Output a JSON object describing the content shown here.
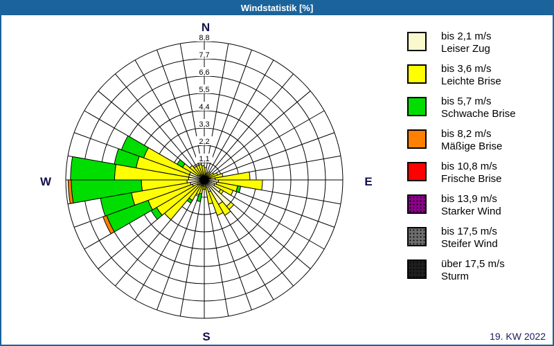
{
  "titlebar": {
    "text": "Windstatistik [%]",
    "bg_color": "#1b639b",
    "text_color": "#ffffff"
  },
  "footer": {
    "text": "19. KW 2022",
    "text_color": "#1a1a5f"
  },
  "compass": {
    "north": "N",
    "east": "E",
    "south": "S",
    "west": "W",
    "label_color": "#10104f"
  },
  "ring_labels": [
    "1,1",
    "2,2",
    "3,3",
    "4,4",
    "5,5",
    "6,6",
    "7,7",
    "8,8"
  ],
  "chart_data": {
    "type": "windrose",
    "title": "Windstatistik [%]",
    "units": "percent",
    "ring_step": 1.1,
    "ring_count": 8,
    "radial_max": 8.8,
    "sector_width_deg": 10,
    "grid": "polar, 36 spokes every 10 degrees, 8 concentric rings",
    "classes": [
      {
        "label": "bis 2,1 m/s",
        "name": "Leiser Zug",
        "color": "#fbf8cd",
        "dotted": false
      },
      {
        "label": "bis 3,6 m/s",
        "name": "Leichte Brise",
        "color": "#ffff00",
        "dotted": false
      },
      {
        "label": "bis 5,7 m/s",
        "name": "Schwache Brise",
        "color": "#00de00",
        "dotted": false
      },
      {
        "label": "bis 8,2 m/s",
        "name": "Mäßige Brise",
        "color": "#ff8000",
        "dotted": false
      },
      {
        "label": "bis 10,8 m/s",
        "name": "Frische Brise",
        "color": "#ff0000",
        "dotted": false
      },
      {
        "label": "bis 13,9 m/s",
        "name": "Starker Wind",
        "color": "#8b008b",
        "dotted": true
      },
      {
        "label": "bis 17,5 m/s",
        "name": "Steifer Wind",
        "color": "#6c6c6c",
        "dotted": true
      },
      {
        "label": "über 17,5 m/s",
        "name": "Sturm",
        "color": "#1f1f1f",
        "dotted": true
      }
    ],
    "sectors_note": "start = compass start angle of 10° sector; cum = cumulative % per speed class (bis 2,1 / bis 3,6 / bis 5,7 / bis 8,2 m/s)",
    "sectors": [
      {
        "start": 0,
        "cum": [
          0.2,
          0.8
        ]
      },
      {
        "start": 10,
        "cum": [
          0.1,
          0.4
        ]
      },
      {
        "start": 20,
        "cum": [
          0.2,
          0.5
        ]
      },
      {
        "start": 30,
        "cum": [
          0.2,
          0.6
        ]
      },
      {
        "start": 40,
        "cum": [
          0.2,
          0.5
        ]
      },
      {
        "start": 50,
        "cum": [
          0.3,
          0.7
        ]
      },
      {
        "start": 60,
        "cum": [
          0.3,
          0.9
        ]
      },
      {
        "start": 70,
        "cum": [
          0.4,
          1.2
        ]
      },
      {
        "start": 80,
        "cum": [
          0.7,
          2.9
        ]
      },
      {
        "start": 90,
        "cum": [
          0.9,
          3.7
        ]
      },
      {
        "start": 100,
        "cum": [
          0.8,
          2.15,
          2.35
        ]
      },
      {
        "start": 110,
        "cum": [
          0.7,
          1.95
        ]
      },
      {
        "start": 120,
        "cum": [
          1.2,
          1.4
        ]
      },
      {
        "start": 130,
        "cum": [
          2.2,
          2.45
        ]
      },
      {
        "start": 140,
        "cum": [
          1.8,
          2.6
        ]
      },
      {
        "start": 150,
        "cum": [
          0.8,
          2.4
        ]
      },
      {
        "start": 160,
        "cum": [
          0.5,
          1.55
        ]
      },
      {
        "start": 170,
        "cum": [
          0.4,
          0.6
        ]
      },
      {
        "start": 180,
        "cum": [
          0.3,
          0.6
        ]
      },
      {
        "start": 190,
        "cum": [
          0.4,
          0.9,
          1.4
        ]
      },
      {
        "start": 200,
        "cum": [
          0.4,
          1.0
        ]
      },
      {
        "start": 210,
        "cum": [
          0.3,
          1.5,
          1.7
        ]
      },
      {
        "start": 220,
        "cum": [
          0.4,
          3.3
        ]
      },
      {
        "start": 230,
        "cum": [
          0.5,
          3.5,
          3.9
        ]
      },
      {
        "start": 240,
        "cum": [
          0.8,
          3.8,
          6.6,
          6.85
        ]
      },
      {
        "start": 250,
        "cum": [
          0.9,
          4.7,
          6.7
        ]
      },
      {
        "start": 260,
        "cum": [
          1.1,
          4.0,
          8.45,
          8.65
        ]
      },
      {
        "start": 270,
        "cum": [
          1.0,
          5.7,
          8.5
        ]
      },
      {
        "start": 280,
        "cum": [
          1.0,
          4.4,
          5.8
        ]
      },
      {
        "start": 290,
        "cum": [
          1.0,
          4.1,
          5.6
        ]
      },
      {
        "start": 300,
        "cum": [
          0.5,
          1.6,
          2.0
        ]
      },
      {
        "start": 310,
        "cum": [
          0.4,
          1.2
        ]
      },
      {
        "start": 320,
        "cum": [
          0.4,
          1.0
        ]
      },
      {
        "start": 330,
        "cum": [
          0.3,
          1.0
        ]
      },
      {
        "start": 340,
        "cum": [
          0.3,
          1.0
        ]
      },
      {
        "start": 350,
        "cum": [
          0.2,
          0.9
        ]
      }
    ]
  }
}
